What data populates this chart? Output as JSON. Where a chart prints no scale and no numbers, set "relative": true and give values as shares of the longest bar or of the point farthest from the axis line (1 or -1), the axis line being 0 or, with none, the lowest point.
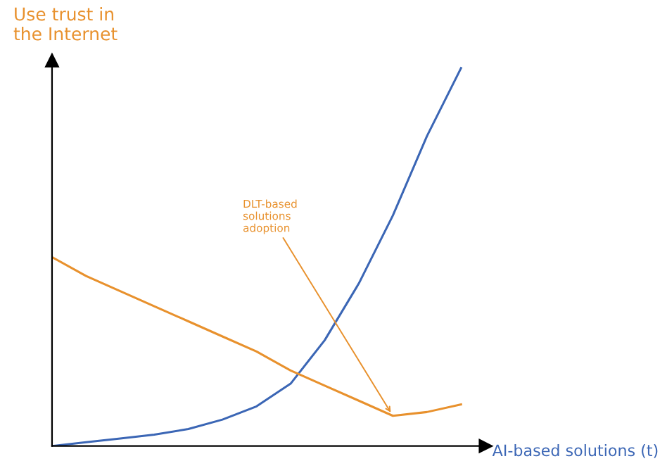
{
  "chart_data": {
    "type": "line",
    "relative": true,
    "xlabel": "AI-based solutions (t)",
    "ylabel": "Use trust in\nthe Internet",
    "categories": [
      null,
      null,
      null,
      null,
      null,
      null,
      null,
      null,
      null,
      null,
      null,
      null,
      null
    ],
    "series": [
      {
        "color": "#3b66b5",
        "values": [
          0.0,
          0.01,
          0.02,
          0.03,
          0.045,
          0.07,
          0.105,
          0.165,
          0.28,
          0.43,
          0.61,
          0.82,
          1.0
        ]
      },
      {
        "color": "#e8912d",
        "values": [
          0.5,
          0.45,
          0.41,
          0.37,
          0.33,
          0.29,
          0.25,
          0.2,
          0.16,
          0.12,
          0.08,
          0.09,
          0.11
        ]
      }
    ],
    "annotations": [
      "DLT-based\nsolutions\nadoption"
    ],
    "grid": false,
    "legend": false,
    "marker": "none",
    "line_style": "solid"
  }
}
